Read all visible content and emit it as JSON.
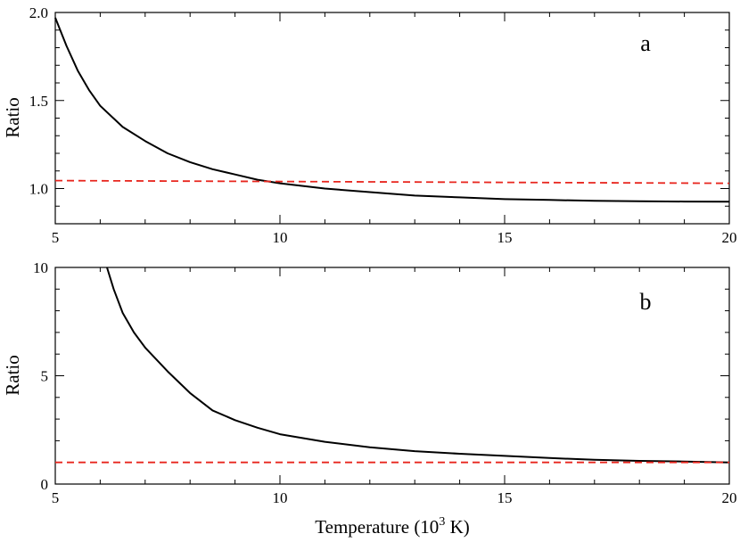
{
  "colors": {
    "solid_series": "#000000",
    "dashed_series": "#e8261e"
  },
  "xlabel_prefix": "Temperature (10",
  "xlabel_sup": "3",
  "xlabel_suffix": " K)",
  "chart_data": [
    {
      "type": "line",
      "panel_label": "a",
      "xlabel": "",
      "ylabel": "Ratio",
      "xlim": [
        5,
        20
      ],
      "ylim": [
        0.8,
        2.0
      ],
      "x_ticks": [
        5,
        10,
        15,
        20
      ],
      "x_tick_labels": [
        "5",
        "10",
        "15",
        "20"
      ],
      "y_ticks": [
        1.0,
        1.5,
        2.0
      ],
      "y_tick_labels": [
        "1.0",
        "1.5",
        "2.0"
      ],
      "x_minor_step": 1,
      "y_minor_step": 0.1,
      "grid": false,
      "series": [
        {
          "style": "solid",
          "x": [
            5.0,
            5.25,
            5.5,
            5.75,
            6.0,
            6.5,
            7.0,
            7.5,
            8.0,
            8.5,
            9.0,
            9.5,
            10.0,
            11.0,
            12.0,
            13.0,
            14.0,
            15.0,
            16.0,
            17.0,
            18.0,
            19.0,
            20.0
          ],
          "y": [
            1.97,
            1.81,
            1.67,
            1.56,
            1.47,
            1.35,
            1.27,
            1.2,
            1.15,
            1.11,
            1.08,
            1.05,
            1.03,
            1.0,
            0.98,
            0.96,
            0.95,
            0.94,
            0.935,
            0.93,
            0.928,
            0.926,
            0.925
          ]
        },
        {
          "style": "dashed",
          "x": [
            5,
            20
          ],
          "y": [
            1.045,
            1.03
          ]
        }
      ]
    },
    {
      "type": "line",
      "panel_label": "b",
      "xlabel": "Temperature (10^3 K)",
      "ylabel": "Ratio",
      "xlim": [
        5,
        20
      ],
      "ylim": [
        0,
        10
      ],
      "x_ticks": [
        5,
        10,
        15,
        20
      ],
      "x_tick_labels": [
        "5",
        "10",
        "15",
        "20"
      ],
      "y_ticks": [
        0,
        5,
        10
      ],
      "y_tick_labels": [
        "0",
        "5",
        "10"
      ],
      "x_minor_step": 1,
      "y_minor_step": 1,
      "grid": false,
      "series": [
        {
          "style": "solid",
          "x": [
            6.15,
            6.3,
            6.5,
            6.75,
            7.0,
            7.5,
            8.0,
            8.5,
            9.0,
            9.5,
            10.0,
            11.0,
            12.0,
            13.0,
            14.0,
            15.0,
            16.0,
            17.0,
            18.0,
            19.0,
            20.0
          ],
          "y": [
            10.0,
            9.0,
            7.9,
            7.0,
            6.3,
            5.2,
            4.2,
            3.4,
            2.95,
            2.6,
            2.3,
            1.95,
            1.7,
            1.52,
            1.4,
            1.3,
            1.2,
            1.12,
            1.07,
            1.04,
            1.0
          ]
        },
        {
          "style": "dashed",
          "x": [
            5,
            20
          ],
          "y": [
            1.0,
            1.0
          ]
        }
      ]
    }
  ]
}
